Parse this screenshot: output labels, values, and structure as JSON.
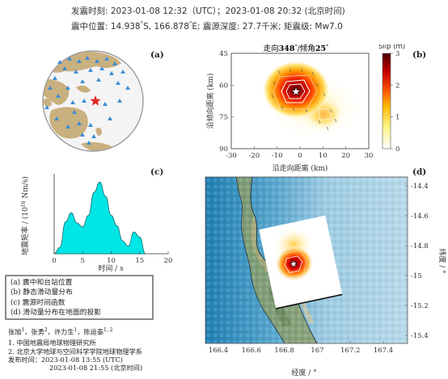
{
  "header": {
    "line1": "发震时刻: 2023-01-08 12:32（UTC）；2023-01-08 20:32 (北京时间)",
    "line2_part1": "震中位置: 14.938",
    "line2_sup1": "°",
    "line2_part2": "S,  166.878",
    "line2_sup2": "°",
    "line2_part3": "E;   震源深度: 27.7千米; 矩震级: Mw7.0"
  },
  "panel_a": {
    "label": "(a)"
  },
  "panel_b": {
    "label": "(b)",
    "title_pre": "走向",
    "strike": "348",
    "deg1": "°",
    "mid": "/倾角",
    "dip": "25",
    "deg2": "°",
    "xlabel": "沿走向距离 (km)",
    "ylabel": "沿倾向距离 (km)",
    "xticks": [
      "-30",
      "-20",
      "-10",
      "0",
      "10",
      "20",
      "30"
    ],
    "yticks": [
      "45",
      "60",
      "75",
      "90"
    ],
    "colorbar_title": "Slip (m)",
    "colorbar_ticks": [
      "3",
      "2",
      "1",
      "0"
    ]
  },
  "panel_c": {
    "label": "(c)",
    "xlabel": "时间 / s",
    "ylabel_pre": "地震矩率 / (10",
    "ylabel_sup": "18",
    "ylabel_post": " Nm/s)",
    "xticks": [
      "0",
      "5",
      "10",
      "15",
      "20"
    ]
  },
  "panel_d": {
    "label": "(d)",
    "xlabel": "经度 / °",
    "ylabel": "纬度 / °",
    "xticks": [
      "166.4",
      "166.6",
      "166.8",
      "167",
      "167.2",
      "167.4"
    ],
    "yticks": [
      "-14.4",
      "-14.6",
      "-14.8",
      "-15",
      "-15.2",
      "-15.4"
    ]
  },
  "legend": {
    "items": [
      "(a) 震中和台站位置",
      "(b) 静态滑动量分布",
      "(c) 震源时间函数",
      "(d) 滑动量分布在地面的投影"
    ]
  },
  "credits": {
    "authors": [
      {
        "name": "张旭",
        "sup": "1"
      },
      {
        "name": "张勇",
        "sup": "2"
      },
      {
        "name": "许力生",
        "sup": "1"
      },
      {
        "name": "陈运泰",
        "sup": "1, 2"
      }
    ],
    "sep": "，",
    "aff1": "1. 中国地震局地球物理研究所",
    "aff2": "2. 北京大学地球与空间科学学院地球物理学系",
    "release_label": "发布时间：",
    "release1": "2023-01-08  13:55 (UTC)",
    "release2": "2023-01-08  21:55 (北京时间)"
  },
  "chart_data": [
    {
      "type": "area",
      "panel": "(c)",
      "xlabel": "时间 / s",
      "ylabel": "地震矩率 / (10^18 Nm/s)",
      "xlim": [
        0,
        20
      ],
      "x": [
        0,
        1,
        2,
        3,
        4,
        5,
        6,
        7,
        8,
        9,
        10,
        11,
        12,
        13,
        14,
        15,
        16
      ],
      "values": [
        0,
        0.5,
        2.5,
        3.2,
        2.4,
        2.1,
        3.0,
        4.8,
        5.6,
        4.5,
        3.0,
        2.2,
        1.0,
        0.6,
        1.7,
        1.3,
        0
      ],
      "color": "#00e5e5"
    }
  ]
}
